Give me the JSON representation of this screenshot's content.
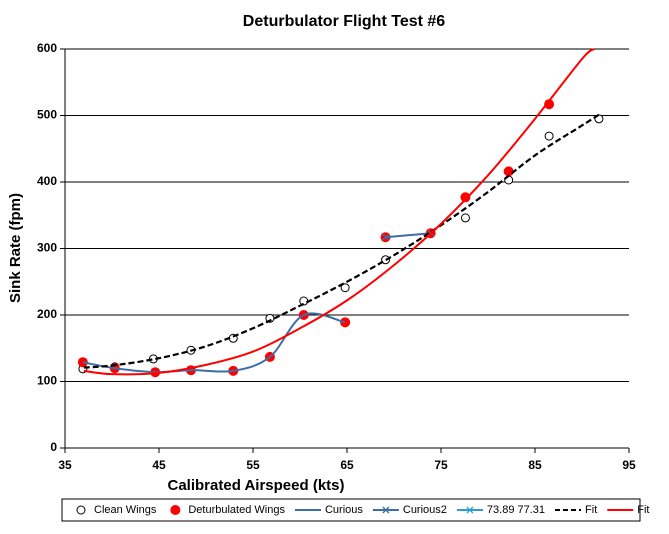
{
  "chart_data": {
    "type": "scatter",
    "title": "Deturbulator Flight Test #6",
    "x_label": "Calibrated Airspeed  (kts)",
    "y_label": "Sink Rate (fpm)",
    "xlim": [
      35,
      95
    ],
    "xticks": [
      35,
      45,
      55,
      65,
      75,
      85,
      95
    ],
    "ylim": [
      0,
      600
    ],
    "yticks": [
      0,
      100,
      200,
      300,
      400,
      500,
      600
    ],
    "grid": true,
    "legend": "bottom",
    "series": [
      {
        "name": "Clean Wings",
        "color": "#000000",
        "marker": "open-circle",
        "line": null,
        "x": [
          36.9,
          40.3,
          44.4,
          48.4,
          52.9,
          56.8,
          60.4,
          64.8,
          69.1,
          73.9,
          77.6,
          82.2,
          86.5,
          91.8
        ],
        "values": [
          119,
          122,
          134,
          147,
          165,
          195,
          221,
          241,
          283,
          323,
          346,
          403,
          469,
          495
        ]
      },
      {
        "name": "Deturbulated Wings",
        "color": "#ff0000",
        "marker": "circle",
        "line": null,
        "x": [
          36.9,
          40.3,
          44.6,
          48.4,
          52.9,
          56.8,
          60.4,
          64.8,
          69.1,
          73.9,
          77.6,
          82.2,
          86.5
        ],
        "values": [
          129,
          120,
          114,
          117,
          116,
          137,
          200,
          189,
          317,
          323,
          377,
          416,
          517
        ]
      },
      {
        "name": "Curious",
        "color": "#3a6ea5",
        "marker": null,
        "line": "solid",
        "x": [
          36.9,
          40.3,
          44.6,
          48.4,
          52.9,
          56.8,
          60.4,
          64.8
        ],
        "values": [
          129,
          120,
          114,
          117,
          116,
          137,
          200,
          189
        ]
      },
      {
        "name": "Curious2",
        "color": "#3a6ea5",
        "marker": "x",
        "line": "solid",
        "x": [
          69.1,
          73.9
        ],
        "values": [
          317,
          323
        ]
      },
      {
        "name": "73.89 77.31",
        "color": "#2e9bd6",
        "marker": "x",
        "line": "solid",
        "x": [],
        "values": []
      },
      {
        "name": "Fit",
        "color": "#000000",
        "marker": null,
        "line": "dashed",
        "x": [
          37,
          40,
          45,
          50,
          55,
          60,
          65,
          70,
          75,
          80,
          85,
          90,
          92
        ],
        "values": [
          121,
          124,
          135,
          153,
          180,
          214,
          250,
          290,
          335,
          385,
          440,
          485,
          503
        ]
      },
      {
        "name": "Fit",
        "color": "#ff0000",
        "marker": null,
        "line": "solid",
        "x": [
          37,
          40,
          45,
          50,
          55,
          60,
          65,
          70,
          75,
          80,
          85,
          90,
          91.3
        ],
        "values": [
          116,
          111,
          113,
          125,
          145,
          180,
          222,
          275,
          337,
          410,
          495,
          585,
          600
        ]
      }
    ]
  }
}
